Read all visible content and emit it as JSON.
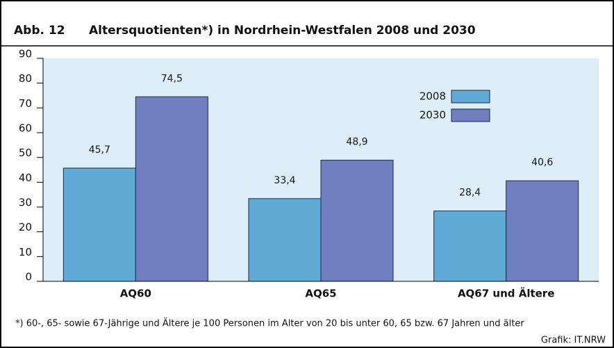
{
  "chart_data": {
    "type": "bar",
    "figure_label": "Abb. 12",
    "title": "Altersquotienten*) in Nordrhein-Westfalen 2008 und 2030",
    "categories": [
      "AQ60",
      "AQ65",
      "AQ67 und Ältere"
    ],
    "series": [
      {
        "name": "2008",
        "color": "#5fabd6",
        "values": [
          45.7,
          33.4,
          28.4
        ],
        "value_labels": [
          "45,7",
          "33,4",
          "28,4"
        ]
      },
      {
        "name": "2030",
        "color": "#6f7fbf",
        "values": [
          74.5,
          48.9,
          40.6
        ],
        "value_labels": [
          "74,5",
          "48,9",
          "40,6"
        ]
      }
    ],
    "ylim": [
      0,
      90
    ],
    "yticks": [
      0,
      10,
      20,
      30,
      40,
      50,
      60,
      70,
      80,
      90
    ],
    "legend": "upper right",
    "footnote": "*) 60-, 65- sowie 67-Jährige und Ältere je 100 Personen im Alter von 20 bis unter 60, 65 bzw. 67 Jahren und älter",
    "source": "Grafik: IT.NRW"
  }
}
